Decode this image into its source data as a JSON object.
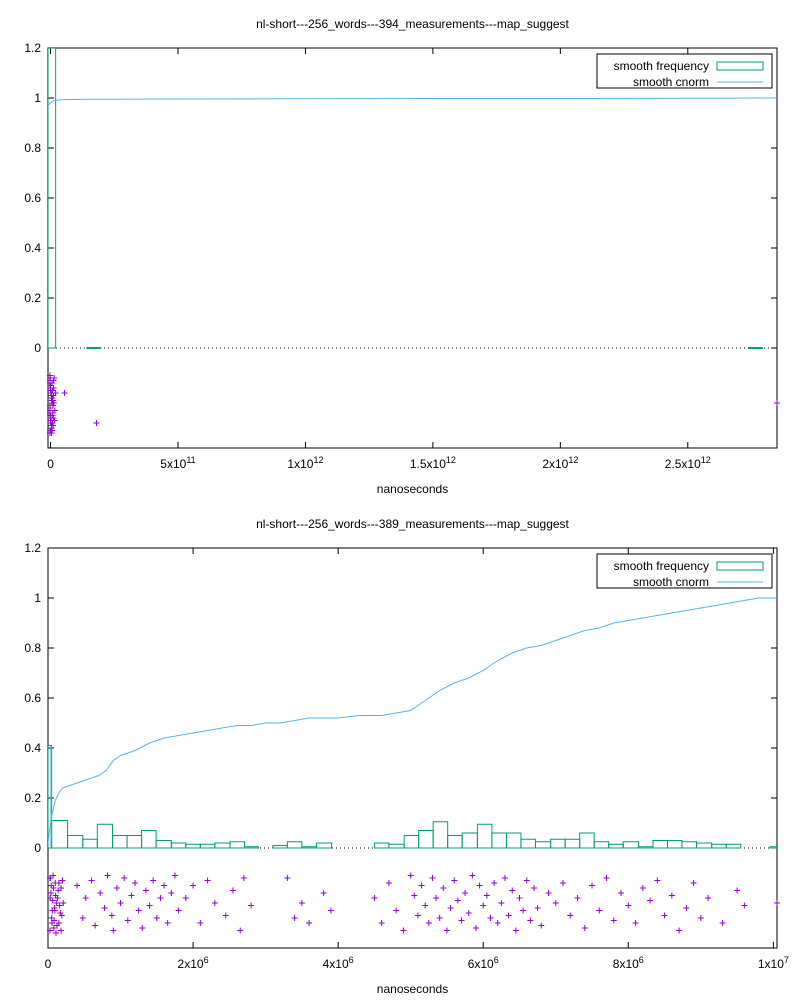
{
  "chart_data": [
    {
      "type": "histogram+cdf+scatter",
      "title": "nl-short---256_words---394_measurements---map_suggest",
      "xlabel": "nanoseconds",
      "ylabel": "",
      "xlim": [
        -10000000000,
        2850000000000
      ],
      "ylim": [
        -0.4,
        1.2
      ],
      "grid": false,
      "legend_position": "top-right",
      "xticks": [
        {
          "value": 0,
          "label": "0",
          "sup": ""
        },
        {
          "value": 500000000000,
          "label": "5x10",
          "sup": "11"
        },
        {
          "value": 1000000000000,
          "label": "1x10",
          "sup": "12"
        },
        {
          "value": 1500000000000,
          "label": "1.5x10",
          "sup": "12"
        },
        {
          "value": 2000000000000,
          "label": "2x10",
          "sup": "12"
        },
        {
          "value": 2500000000000,
          "label": "2.5x10",
          "sup": "12"
        }
      ],
      "yticks": [
        {
          "value": 0,
          "label": "0"
        },
        {
          "value": 0.2,
          "label": "0.2"
        },
        {
          "value": 0.4,
          "label": "0.4"
        },
        {
          "value": 0.6,
          "label": "0.6"
        },
        {
          "value": 0.8,
          "label": "0.8"
        },
        {
          "value": 1,
          "label": "1"
        },
        {
          "value": 1.2,
          "label": "1.2"
        }
      ],
      "legend": [
        {
          "label": "smooth frequency",
          "color": "#009e73",
          "kind": "box"
        },
        {
          "label": "smooth cnorm",
          "color": "#56b4e9",
          "kind": "line"
        }
      ],
      "frequency_bars": [
        {
          "x0": -10000000000,
          "x1": 20000000000,
          "height": 1.2
        },
        {
          "x0": 145000000000,
          "x1": 195000000000,
          "height": 0.0
        },
        {
          "x0": 2740000000000,
          "x1": 2790000000000,
          "height": 0.0
        }
      ],
      "cnorm": {
        "x": [
          -10000000000,
          0,
          5000000000,
          15000000000,
          40000000000,
          150000000000,
          500000000000,
          1000000000000,
          1500000000000,
          2000000000000,
          2500000000000,
          2850000000000
        ],
        "y": [
          0.97,
          0.98,
          0.985,
          0.99,
          0.993,
          0.995,
          0.996,
          0.997,
          0.998,
          0.998,
          0.999,
          1.0
        ]
      },
      "scatter": {
        "x": [
          -5000000000,
          -3000000000,
          -1000000000,
          1000000000,
          3000000000,
          5000000000,
          -4000000000,
          -2000000000,
          0,
          2000000000,
          4000000000,
          -5000000000,
          -3000000000,
          -1000000000,
          1000000000,
          3000000000,
          5000000000,
          -4000000000,
          -2000000000,
          0,
          2000000000,
          4000000000,
          -5000000000,
          -3000000000,
          -1000000000,
          1000000000,
          3000000000,
          5000000000,
          -4000000000,
          -2000000000,
          0,
          2000000000,
          4000000000,
          6000000000,
          7000000000,
          9000000000,
          12000000000,
          10000000000,
          8000000000,
          14000000000,
          20000000000,
          11000000000,
          13000000000,
          6000000000,
          17000000000,
          8000000000,
          10000000000,
          12000000000,
          15000000000,
          9000000000,
          7000000000,
          11000000000,
          55000000000,
          180000000000,
          2850000000000
        ],
        "y": [
          -0.12,
          -0.14,
          -0.16,
          -0.18,
          -0.2,
          -0.22,
          -0.24,
          -0.26,
          -0.28,
          -0.3,
          -0.32,
          -0.34,
          -0.13,
          -0.15,
          -0.17,
          -0.19,
          -0.21,
          -0.23,
          -0.25,
          -0.27,
          -0.29,
          -0.31,
          -0.33,
          -0.11,
          -0.12,
          -0.15,
          -0.18,
          -0.2,
          -0.23,
          -0.27,
          -0.3,
          -0.33,
          -0.34,
          -0.14,
          -0.2,
          -0.26,
          -0.16,
          -0.23,
          -0.3,
          -0.12,
          -0.18,
          -0.28,
          -0.22,
          -0.33,
          -0.25,
          -0.17,
          -0.31,
          -0.13,
          -0.29,
          -0.21,
          -0.27,
          -0.19,
          -0.18,
          -0.3,
          -0.22
        ]
      }
    },
    {
      "type": "histogram+cdf+scatter",
      "title": "nl-short---256_words---389_measurements---map_suggest",
      "xlabel": "nanoseconds",
      "ylabel": "",
      "xlim": [
        0,
        10050000
      ],
      "ylim": [
        -0.4,
        1.2
      ],
      "grid": false,
      "legend_position": "top-right",
      "xticks": [
        {
          "value": 0,
          "label": "0",
          "sup": ""
        },
        {
          "value": 2000000,
          "label": "2x10",
          "sup": "6"
        },
        {
          "value": 4000000,
          "label": "4x10",
          "sup": "6"
        },
        {
          "value": 6000000,
          "label": "6x10",
          "sup": "6"
        },
        {
          "value": 8000000,
          "label": "8x10",
          "sup": "6"
        },
        {
          "value": 10000000,
          "label": "1x10",
          "sup": "7"
        }
      ],
      "yticks": [
        {
          "value": 0,
          "label": "0"
        },
        {
          "value": 0.2,
          "label": "0.2"
        },
        {
          "value": 0.4,
          "label": "0.4"
        },
        {
          "value": 0.6,
          "label": "0.6"
        },
        {
          "value": 0.8,
          "label": "0.8"
        },
        {
          "value": 1,
          "label": "1"
        },
        {
          "value": 1.2,
          "label": "1.2"
        }
      ],
      "legend": [
        {
          "label": "smooth frequency",
          "color": "#009e73",
          "kind": "box"
        },
        {
          "label": "smooth cnorm",
          "color": "#56b4e9",
          "kind": "line"
        }
      ],
      "frequency_bars": [
        {
          "x0": 0,
          "x1": 50000,
          "height": 0.41
        },
        {
          "x0": 50000,
          "x1": 270000,
          "height": 0.11
        },
        {
          "x0": 270000,
          "x1": 480000,
          "height": 0.05
        },
        {
          "x0": 480000,
          "x1": 680000,
          "height": 0.035
        },
        {
          "x0": 680000,
          "x1": 890000,
          "height": 0.095
        },
        {
          "x0": 890000,
          "x1": 1090000,
          "height": 0.05
        },
        {
          "x0": 1090000,
          "x1": 1290000,
          "height": 0.05
        },
        {
          "x0": 1290000,
          "x1": 1490000,
          "height": 0.07
        },
        {
          "x0": 1490000,
          "x1": 1700000,
          "height": 0.03
        },
        {
          "x0": 1700000,
          "x1": 1900000,
          "height": 0.02
        },
        {
          "x0": 1900000,
          "x1": 2100000,
          "height": 0.015
        },
        {
          "x0": 2100000,
          "x1": 2300000,
          "height": 0.015
        },
        {
          "x0": 2300000,
          "x1": 2510000,
          "height": 0.02
        },
        {
          "x0": 2510000,
          "x1": 2710000,
          "height": 0.025
        },
        {
          "x0": 2710000,
          "x1": 2900000,
          "height": 0.005
        },
        {
          "x0": 3100000,
          "x1": 3300000,
          "height": 0.01
        },
        {
          "x0": 3300000,
          "x1": 3500000,
          "height": 0.025
        },
        {
          "x0": 3500000,
          "x1": 3700000,
          "height": 0.005
        },
        {
          "x0": 3700000,
          "x1": 3910000,
          "height": 0.02
        },
        {
          "x0": 4500000,
          "x1": 4700000,
          "height": 0.02
        },
        {
          "x0": 4700000,
          "x1": 4910000,
          "height": 0.015
        },
        {
          "x0": 4910000,
          "x1": 5110000,
          "height": 0.05
        },
        {
          "x0": 5110000,
          "x1": 5310000,
          "height": 0.07
        },
        {
          "x0": 5310000,
          "x1": 5510000,
          "height": 0.105
        },
        {
          "x0": 5510000,
          "x1": 5710000,
          "height": 0.05
        },
        {
          "x0": 5710000,
          "x1": 5920000,
          "height": 0.06
        },
        {
          "x0": 5920000,
          "x1": 6120000,
          "height": 0.095
        },
        {
          "x0": 6120000,
          "x1": 6320000,
          "height": 0.06
        },
        {
          "x0": 6320000,
          "x1": 6520000,
          "height": 0.06
        },
        {
          "x0": 6520000,
          "x1": 6720000,
          "height": 0.035
        },
        {
          "x0": 6720000,
          "x1": 6930000,
          "height": 0.025
        },
        {
          "x0": 6930000,
          "x1": 7130000,
          "height": 0.035
        },
        {
          "x0": 7130000,
          "x1": 7330000,
          "height": 0.035
        },
        {
          "x0": 7330000,
          "x1": 7530000,
          "height": 0.06
        },
        {
          "x0": 7530000,
          "x1": 7730000,
          "height": 0.025
        },
        {
          "x0": 7730000,
          "x1": 7930000,
          "height": 0.015
        },
        {
          "x0": 7930000,
          "x1": 8140000,
          "height": 0.025
        },
        {
          "x0": 8140000,
          "x1": 8340000,
          "height": 0.005
        },
        {
          "x0": 8340000,
          "x1": 8540000,
          "height": 0.03
        },
        {
          "x0": 8540000,
          "x1": 8740000,
          "height": 0.03
        },
        {
          "x0": 8740000,
          "x1": 8940000,
          "height": 0.025
        },
        {
          "x0": 8940000,
          "x1": 9150000,
          "height": 0.02
        },
        {
          "x0": 9150000,
          "x1": 9350000,
          "height": 0.015
        },
        {
          "x0": 9350000,
          "x1": 9550000,
          "height": 0.015
        },
        {
          "x0": 9950000,
          "x1": 10050000,
          "height": 0.005
        }
      ],
      "cnorm": {
        "x": [
          0,
          30000,
          60000,
          100000,
          150000,
          200000,
          300000,
          400000,
          500000,
          600000,
          700000,
          800000,
          900000,
          1000000,
          1200000,
          1400000,
          1600000,
          1800000,
          2000000,
          2200000,
          2400000,
          2600000,
          2800000,
          3000000,
          3200000,
          3400000,
          3600000,
          3800000,
          4000000,
          4300000,
          4600000,
          4800000,
          5000000,
          5200000,
          5400000,
          5600000,
          5800000,
          6000000,
          6200000,
          6400000,
          6600000,
          6800000,
          7000000,
          7200000,
          7400000,
          7600000,
          7800000,
          8000000,
          8200000,
          8400000,
          8600000,
          8800000,
          9000000,
          9200000,
          9400000,
          9600000,
          9800000,
          10050000
        ],
        "y": [
          0.02,
          0.09,
          0.14,
          0.19,
          0.22,
          0.24,
          0.25,
          0.26,
          0.27,
          0.28,
          0.29,
          0.31,
          0.35,
          0.37,
          0.39,
          0.42,
          0.44,
          0.45,
          0.46,
          0.47,
          0.48,
          0.49,
          0.49,
          0.5,
          0.5,
          0.51,
          0.52,
          0.52,
          0.52,
          0.53,
          0.53,
          0.54,
          0.55,
          0.59,
          0.63,
          0.66,
          0.68,
          0.71,
          0.75,
          0.78,
          0.8,
          0.81,
          0.83,
          0.85,
          0.87,
          0.88,
          0.9,
          0.91,
          0.92,
          0.93,
          0.94,
          0.95,
          0.96,
          0.97,
          0.98,
          0.99,
          1.0,
          1.0
        ],
        "spike": {
          "x": 40000,
          "y0": 0.0,
          "y1": 0.41
        }
      },
      "scatter": {
        "x": [
          20000,
          40000,
          60000,
          80000,
          100000,
          120000,
          150000,
          180000,
          30000,
          50000,
          70000,
          90000,
          110000,
          140000,
          170000,
          200000,
          25000,
          45000,
          65000,
          85000,
          105000,
          125000,
          160000,
          190000,
          35000,
          55000,
          75000,
          95000,
          130000,
          150000,
          180000,
          210000,
          400000,
          480000,
          520000,
          600000,
          650000,
          720000,
          780000,
          820000,
          880000,
          900000,
          950000,
          1000000,
          1050000,
          1100000,
          1150000,
          1200000,
          1250000,
          1300000,
          1350000,
          1400000,
          1450000,
          1500000,
          1550000,
          1600000,
          1650000,
          1700000,
          1750000,
          1800000,
          1900000,
          2000000,
          2100000,
          2200000,
          2300000,
          2450000,
          2550000,
          2650000,
          2700000,
          2800000,
          3300000,
          3400000,
          3500000,
          3600000,
          3800000,
          3900000,
          4500000,
          4600000,
          4700000,
          4800000,
          4900000,
          5000000,
          5050000,
          5100000,
          5150000,
          5200000,
          5250000,
          5300000,
          5350000,
          5400000,
          5450000,
          5500000,
          5550000,
          5600000,
          5650000,
          5700000,
          5750000,
          5800000,
          5850000,
          5900000,
          5950000,
          6000000,
          6050000,
          6100000,
          6150000,
          6200000,
          6250000,
          6300000,
          6350000,
          6400000,
          6450000,
          6500000,
          6550000,
          6600000,
          6650000,
          6700000,
          6750000,
          6800000,
          6900000,
          7000000,
          7100000,
          7200000,
          7300000,
          7400000,
          7500000,
          7600000,
          7700000,
          7800000,
          7900000,
          8000000,
          8100000,
          8200000,
          8300000,
          8400000,
          8500000,
          8600000,
          8700000,
          8800000,
          8900000,
          9000000,
          9100000,
          9300000,
          9500000,
          9600000,
          10050000
        ],
        "y": [
          -0.12,
          -0.18,
          -0.25,
          -0.32,
          -0.14,
          -0.22,
          -0.3,
          -0.16,
          -0.2,
          -0.28,
          -0.11,
          -0.24,
          -0.34,
          -0.17,
          -0.26,
          -0.13,
          -0.33,
          -0.15,
          -0.21,
          -0.29,
          -0.19,
          -0.31,
          -0.23,
          -0.27,
          -0.12,
          -0.3,
          -0.16,
          -0.25,
          -0.2,
          -0.14,
          -0.33,
          -0.22,
          -0.15,
          -0.28,
          -0.2,
          -0.13,
          -0.31,
          -0.18,
          -0.24,
          -0.11,
          -0.27,
          -0.33,
          -0.16,
          -0.22,
          -0.12,
          -0.29,
          -0.19,
          -0.14,
          -0.25,
          -0.32,
          -0.17,
          -0.23,
          -0.13,
          -0.28,
          -0.2,
          -0.15,
          -0.3,
          -0.18,
          -0.11,
          -0.25,
          -0.2,
          -0.15,
          -0.3,
          -0.13,
          -0.22,
          -0.27,
          -0.17,
          -0.33,
          -0.12,
          -0.23,
          -0.12,
          -0.28,
          -0.22,
          -0.3,
          -0.18,
          -0.25,
          -0.2,
          -0.3,
          -0.14,
          -0.25,
          -0.33,
          -0.11,
          -0.19,
          -0.27,
          -0.15,
          -0.23,
          -0.3,
          -0.12,
          -0.2,
          -0.28,
          -0.16,
          -0.33,
          -0.24,
          -0.13,
          -0.21,
          -0.29,
          -0.18,
          -0.26,
          -0.11,
          -0.32,
          -0.15,
          -0.23,
          -0.19,
          -0.28,
          -0.14,
          -0.3,
          -0.22,
          -0.12,
          -0.27,
          -0.17,
          -0.33,
          -0.2,
          -0.25,
          -0.13,
          -0.29,
          -0.16,
          -0.24,
          -0.31,
          -0.18,
          -0.22,
          -0.14,
          -0.27,
          -0.2,
          -0.32,
          -0.15,
          -0.25,
          -0.12,
          -0.29,
          -0.18,
          -0.23,
          -0.3,
          -0.16,
          -0.21,
          -0.13,
          -0.27,
          -0.19,
          -0.33,
          -0.24,
          -0.14,
          -0.28,
          -0.2,
          -0.3,
          -0.17,
          -0.23,
          -0.22
        ]
      }
    }
  ]
}
